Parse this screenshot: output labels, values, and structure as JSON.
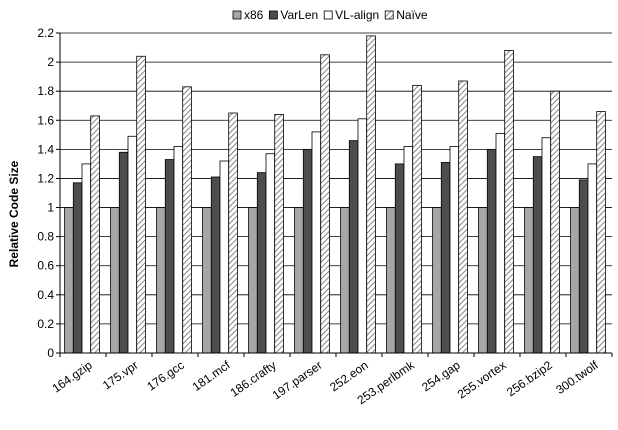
{
  "chart_data": {
    "type": "bar",
    "title": "",
    "xlabel": "",
    "ylabel": "Relative Code Size",
    "ylim": [
      0,
      2.2
    ],
    "ytick_step": 0.2,
    "yticks": [
      "0",
      "0.2",
      "0.4",
      "0.6",
      "0.8",
      "1",
      "1.2",
      "1.4",
      "1.6",
      "1.8",
      "2",
      "2.2"
    ],
    "grid": true,
    "legend_position": "top-center",
    "categories": [
      "164.gzip",
      "175.vpr",
      "176.gcc",
      "181.mcf",
      "186.crafty",
      "197.parser",
      "252.eon",
      "253.perlbmk",
      "254.gap",
      "255.vortex",
      "256.bzip2",
      "300.twolf"
    ],
    "series": [
      {
        "name": "x86",
        "color": "#a6a6a6",
        "pattern": "solid",
        "values": [
          1.0,
          1.0,
          1.0,
          1.0,
          1.0,
          1.0,
          1.0,
          1.0,
          1.0,
          1.0,
          1.0,
          1.0
        ]
      },
      {
        "name": "VarLen",
        "color": "#4d4d4d",
        "pattern": "solid",
        "values": [
          1.17,
          1.38,
          1.33,
          1.21,
          1.24,
          1.4,
          1.46,
          1.3,
          1.31,
          1.4,
          1.35,
          1.19
        ]
      },
      {
        "name": "VL-align",
        "color": "#ffffff",
        "pattern": "solid",
        "values": [
          1.3,
          1.49,
          1.42,
          1.32,
          1.37,
          1.52,
          1.61,
          1.42,
          1.42,
          1.51,
          1.48,
          1.3
        ]
      },
      {
        "name": "Naïve",
        "color": "#cccccc",
        "pattern": "hatch",
        "values": [
          1.63,
          2.04,
          1.83,
          1.65,
          1.64,
          2.05,
          2.18,
          1.84,
          1.87,
          2.08,
          1.8,
          1.66
        ]
      }
    ]
  }
}
